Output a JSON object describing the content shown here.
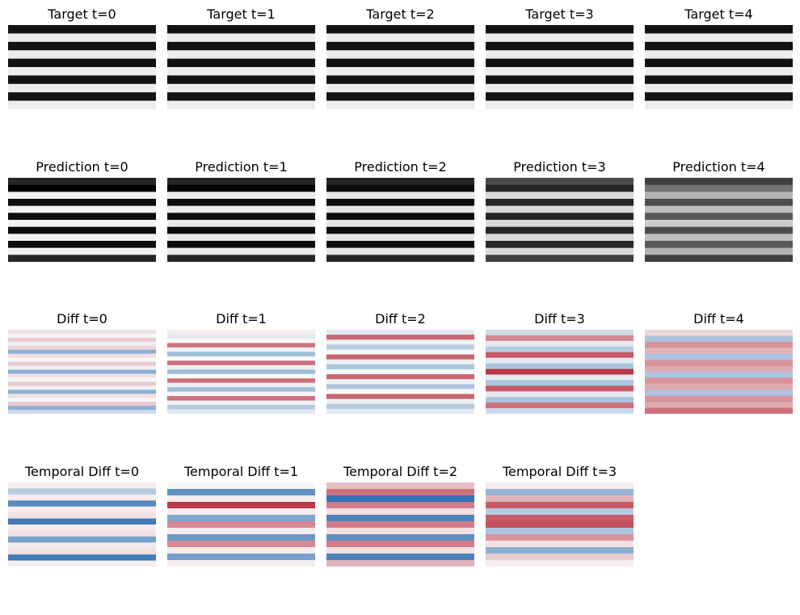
{
  "chart_data": [
    {
      "type": "heatmap",
      "title": "Target t=0",
      "map": "gray",
      "stripes": [
        0.07,
        0.93,
        0.07,
        0.93,
        0.07,
        0.93,
        0.07,
        0.93,
        0.07,
        0.93
      ]
    },
    {
      "type": "heatmap",
      "title": "Target t=1",
      "map": "gray",
      "stripes": [
        0.07,
        0.93,
        0.07,
        0.93,
        0.07,
        0.93,
        0.07,
        0.93,
        0.07,
        0.93
      ]
    },
    {
      "type": "heatmap",
      "title": "Target t=2",
      "map": "gray",
      "stripes": [
        0.07,
        0.93,
        0.07,
        0.93,
        0.07,
        0.93,
        0.07,
        0.93,
        0.07,
        0.93
      ]
    },
    {
      "type": "heatmap",
      "title": "Target t=3",
      "map": "gray",
      "stripes": [
        0.07,
        0.93,
        0.07,
        0.93,
        0.07,
        0.93,
        0.07,
        0.93,
        0.07,
        0.93
      ]
    },
    {
      "type": "heatmap",
      "title": "Target t=4",
      "map": "gray",
      "stripes": [
        0.07,
        0.93,
        0.07,
        0.93,
        0.07,
        0.93,
        0.07,
        0.93,
        0.07,
        0.93
      ]
    },
    {
      "type": "heatmap",
      "title": "Prediction t=0",
      "map": "gray",
      "stripes": [
        0.15,
        0.0,
        0.95,
        0.05,
        0.95,
        0.05,
        0.95,
        0.05,
        0.95,
        0.05,
        0.95,
        0.15
      ]
    },
    {
      "type": "heatmap",
      "title": "Prediction t=1",
      "map": "gray",
      "stripes": [
        0.15,
        0.02,
        0.92,
        0.05,
        0.92,
        0.05,
        0.92,
        0.05,
        0.92,
        0.05,
        0.92,
        0.15
      ]
    },
    {
      "type": "heatmap",
      "title": "Prediction t=2",
      "map": "gray",
      "stripes": [
        0.15,
        0.05,
        0.9,
        0.05,
        0.9,
        0.05,
        0.9,
        0.05,
        0.9,
        0.05,
        0.9,
        0.15
      ]
    },
    {
      "type": "heatmap",
      "title": "Prediction t=3",
      "map": "gray",
      "stripes": [
        0.3,
        0.15,
        0.85,
        0.15,
        0.85,
        0.15,
        0.85,
        0.15,
        0.85,
        0.15,
        0.85,
        0.25
      ]
    },
    {
      "type": "heatmap",
      "title": "Prediction t=4",
      "map": "gray",
      "stripes": [
        0.25,
        0.45,
        0.7,
        0.3,
        0.75,
        0.35,
        0.8,
        0.3,
        0.75,
        0.35,
        0.7,
        0.25
      ]
    },
    {
      "type": "heatmap",
      "title": "Diff t=0",
      "map": "rdbu",
      "stripes": [
        0.1,
        0.0,
        0.2,
        -0.05,
        0.15,
        -0.5,
        0.1,
        0.0,
        0.2,
        -0.05,
        -0.5,
        0.1,
        0.0,
        0.2,
        -0.05,
        -0.5,
        0.1,
        0.0,
        0.2,
        -0.5,
        -0.2
      ]
    },
    {
      "type": "heatmap",
      "title": "Diff t=1",
      "map": "rdbu",
      "stripes": [
        0.05,
        -0.1,
        0.0,
        0.6,
        -0.05,
        -0.4,
        0.0,
        0.6,
        -0.05,
        -0.4,
        0.0,
        0.6,
        -0.05,
        -0.4,
        0.0,
        0.6,
        -0.05,
        -0.3,
        -0.1
      ]
    },
    {
      "type": "heatmap",
      "title": "Diff t=2",
      "map": "rdbu",
      "stripes": [
        -0.1,
        0.65,
        -0.05,
        -0.3,
        0.0,
        0.65,
        -0.05,
        -0.35,
        0.0,
        0.65,
        -0.05,
        -0.35,
        0.0,
        0.65,
        -0.05,
        -0.3,
        -0.1
      ]
    },
    {
      "type": "heatmap",
      "title": "Diff t=3",
      "map": "rdbu",
      "stripes": [
        -0.2,
        0.5,
        -0.1,
        -0.3,
        0.7,
        -0.1,
        -0.35,
        0.85,
        -0.1,
        -0.35,
        0.7,
        -0.1,
        -0.35,
        0.6,
        -0.2
      ]
    },
    {
      "type": "heatmap",
      "title": "Diff t=4",
      "map": "rdbu",
      "stripes": [
        0.15,
        -0.35,
        0.45,
        0.3,
        -0.35,
        0.45,
        0.35,
        -0.35,
        0.45,
        0.35,
        -0.35,
        0.45,
        0.35,
        0.6
      ]
    },
    {
      "type": "heatmap",
      "title": "Temporal Diff t=0",
      "map": "rdbu",
      "stripes": [
        0.05,
        -0.3,
        0.05,
        -0.75,
        0.05,
        0.1,
        -0.85,
        0.05,
        0.1,
        -0.6,
        0.05,
        0.1,
        -0.85,
        0.05
      ]
    },
    {
      "type": "heatmap",
      "title": "Temporal Diff t=1",
      "map": "rdbu",
      "stripes": [
        0.0,
        -0.7,
        0.05,
        0.85,
        0.05,
        -0.55,
        0.5,
        0.05,
        -0.65,
        0.5,
        0.05,
        -0.6,
        0.05
      ]
    },
    {
      "type": "heatmap",
      "title": "Temporal Diff t=2",
      "map": "rdbu",
      "stripes": [
        0.25,
        0.6,
        -0.9,
        0.55,
        0.1,
        -0.8,
        0.55,
        0.1,
        -0.7,
        0.55,
        0.1,
        -0.8,
        0.3
      ]
    },
    {
      "type": "heatmap",
      "title": "Temporal Diff t=3",
      "map": "rdbu",
      "stripes": [
        0.05,
        -0.45,
        0.3,
        0.7,
        -0.3,
        0.7,
        0.75,
        -0.35,
        0.45,
        0.1,
        -0.5,
        0.2,
        0.05
      ]
    }
  ]
}
